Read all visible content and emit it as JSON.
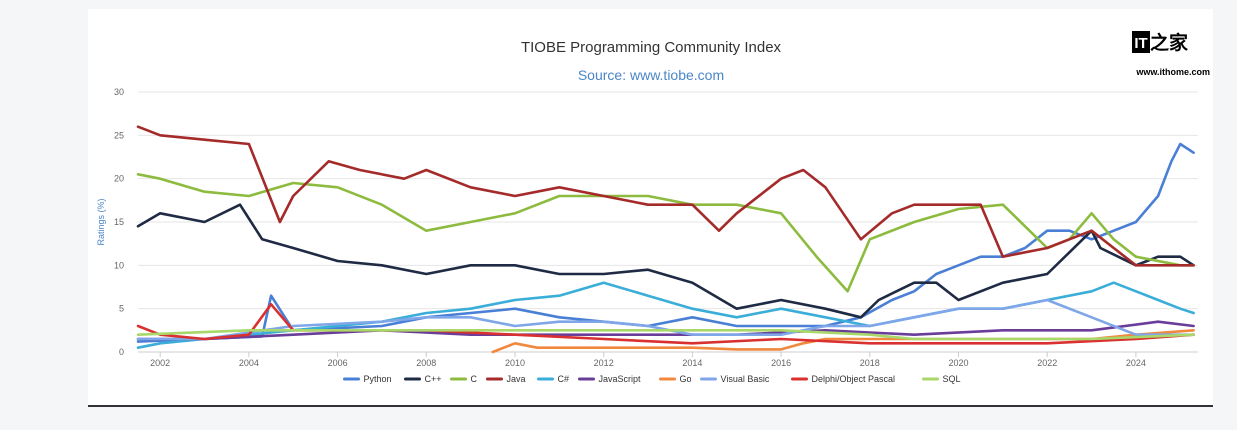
{
  "chart_data": {
    "type": "line",
    "title": "TIOBE Programming Community Index",
    "subtitle": "Source: www.tiobe.com",
    "ylabel": "Ratings (%)",
    "xlabel": "",
    "ylim": [
      0,
      30
    ],
    "xlim": [
      2001.5,
      2025.4
    ],
    "yticks": [
      "0",
      "5",
      "10",
      "15",
      "20",
      "25",
      "30"
    ],
    "xticks": [
      "2002",
      "2004",
      "2006",
      "2008",
      "2010",
      "2012",
      "2014",
      "2016",
      "2018",
      "2020",
      "2022",
      "2024"
    ],
    "grid": true,
    "legend_position": "bottom",
    "series": [
      {
        "name": "Python",
        "color": "#4a7fd6",
        "x": [
          2001.5,
          2003,
          2004.3,
          2004.5,
          2005,
          2007,
          2008,
          2009,
          2010,
          2011,
          2012,
          2013,
          2014,
          2015,
          2016,
          2017,
          2017.8,
          2018.5,
          2019,
          2019.5,
          2020,
          2020.5,
          2021,
          2021.5,
          2022,
          2022.5,
          2023,
          2023.5,
          2024,
          2024.5,
          2024.8,
          2025,
          2025.3
        ],
        "y": [
          1.2,
          1.5,
          1.8,
          6.5,
          2.5,
          3,
          4,
          4.5,
          5,
          4,
          3.5,
          3,
          4,
          3,
          3,
          3,
          4,
          6,
          7,
          9,
          10,
          11,
          11,
          12,
          14,
          14,
          13,
          14,
          15,
          18,
          22,
          24,
          23
        ]
      },
      {
        "name": "C++",
        "color": "#1f2a44",
        "x": [
          2001.5,
          2002,
          2003,
          2003.8,
          2004.3,
          2005,
          2006,
          2007,
          2008,
          2009,
          2010,
          2011,
          2012,
          2013,
          2014,
          2015,
          2016,
          2017,
          2017.8,
          2018.2,
          2019,
          2019.5,
          2020,
          2021,
          2022,
          2023,
          2023.2,
          2024,
          2024.5,
          2025,
          2025.3
        ],
        "y": [
          14.5,
          16,
          15,
          17,
          13,
          12,
          10.5,
          10,
          9,
          10,
          10,
          9,
          9,
          9.5,
          8,
          5,
          6,
          5,
          4,
          6,
          8,
          8,
          6,
          8,
          9,
          14,
          12,
          10,
          11,
          11,
          10
        ]
      },
      {
        "name": "C",
        "color": "#8dbb3f",
        "x": [
          2001.5,
          2002,
          2003,
          2004,
          2005,
          2006,
          2007,
          2008,
          2009,
          2010,
          2011,
          2012,
          2013,
          2014,
          2015,
          2016,
          2016.8,
          2017.5,
          2018,
          2019,
          2020,
          2021,
          2022,
          2022.5,
          2023,
          2023.5,
          2024,
          2025,
          2025.3
        ],
        "y": [
          20.5,
          20,
          18.5,
          18,
          19.5,
          19,
          17,
          14,
          15,
          16,
          18,
          18,
          18,
          17,
          17,
          16,
          11,
          7,
          13,
          15,
          16.5,
          17,
          12,
          13,
          16,
          13,
          11,
          10,
          10
        ]
      },
      {
        "name": "Java",
        "color": "#a52a2a",
        "x": [
          2001.5,
          2002,
          2003,
          2004,
          2004.7,
          2005,
          2005.8,
          2006.5,
          2007.5,
          2008,
          2009,
          2010,
          2011,
          2012,
          2013,
          2014,
          2014.6,
          2015,
          2016,
          2016.5,
          2017,
          2017.8,
          2018.5,
          2019,
          2020,
          2020.5,
          2021,
          2022,
          2022.5,
          2023,
          2023.5,
          2024,
          2025,
          2025.3
        ],
        "y": [
          26,
          25,
          24.5,
          24,
          15,
          18,
          22,
          21,
          20,
          21,
          19,
          18,
          19,
          18,
          17,
          17,
          14,
          16,
          20,
          21,
          19,
          13,
          16,
          17,
          17,
          17,
          11,
          12,
          13,
          14,
          12,
          10,
          10,
          10
        ]
      },
      {
        "name": "C#",
        "color": "#3aaed8",
        "x": [
          2001.5,
          2002,
          2003,
          2004,
          2005,
          2006,
          2007,
          2008,
          2009,
          2010,
          2011,
          2012,
          2013,
          2014,
          2015,
          2016,
          2017,
          2018,
          2019,
          2020,
          2021,
          2022,
          2023,
          2023.5,
          2024,
          2024.5,
          2025,
          2025.3
        ],
        "y": [
          0.5,
          1,
          1.5,
          2,
          2.5,
          3,
          3.5,
          4.5,
          5,
          6,
          6.5,
          8,
          6.5,
          5,
          4,
          5,
          4,
          3,
          4,
          5,
          5,
          6,
          7,
          8,
          7,
          6,
          5,
          4.5
        ]
      },
      {
        "name": "JavaScript",
        "color": "#6a3d9a",
        "x": [
          2001.5,
          2003,
          2005,
          2007,
          2009,
          2011,
          2013,
          2015,
          2017,
          2019,
          2021,
          2023,
          2024.5,
          2025.3
        ],
        "y": [
          1.5,
          1.5,
          2,
          2.5,
          2,
          2,
          2,
          2,
          2.5,
          2,
          2.5,
          2.5,
          3.5,
          3
        ]
      },
      {
        "name": "Go",
        "color": "#f0883e",
        "x": [
          2009.5,
          2010,
          2010.5,
          2011,
          2012,
          2013,
          2014,
          2015,
          2016,
          2016.5,
          2017,
          2018,
          2019,
          2020,
          2021,
          2022,
          2023,
          2024,
          2025.3
        ],
        "y": [
          0,
          1,
          0.5,
          0.5,
          0.5,
          0.5,
          0.5,
          0.3,
          0.3,
          1,
          1.5,
          1.5,
          1.5,
          1.5,
          1.5,
          1.5,
          1.5,
          2,
          2.5
        ]
      },
      {
        "name": "Visual Basic",
        "color": "#7fa6e8",
        "x": [
          2001.5,
          2003,
          2005,
          2007,
          2008,
          2009,
          2010,
          2011,
          2012,
          2013,
          2014,
          2015,
          2016,
          2017,
          2018,
          2019,
          2020,
          2021,
          2022,
          2023,
          2024,
          2025.3
        ],
        "y": [
          1.5,
          1.5,
          3,
          3.5,
          4,
          4,
          3,
          3.5,
          3.5,
          3,
          2,
          2,
          2,
          3,
          3,
          4,
          5,
          5,
          6,
          4,
          2,
          2
        ]
      },
      {
        "name": "Delphi/Object Pascal",
        "color": "#d93030",
        "x": [
          2001.5,
          2002,
          2003,
          2004,
          2004.5,
          2005,
          2006,
          2008,
          2010,
          2012,
          2014,
          2016,
          2018,
          2020,
          2022,
          2024,
          2025.3
        ],
        "y": [
          3,
          2,
          1.5,
          2,
          5.5,
          2.5,
          2.5,
          2.5,
          2,
          1.5,
          1,
          1.5,
          1,
          1,
          1,
          1.5,
          2
        ]
      },
      {
        "name": "SQL",
        "color": "#a8d86a",
        "x": [
          2001.5,
          2004,
          2006,
          2008,
          2010,
          2012,
          2014,
          2016,
          2018,
          2019,
          2021,
          2023,
          2025.3
        ],
        "y": [
          2,
          2.5,
          2.5,
          2.5,
          2.5,
          2.5,
          2.5,
          2.5,
          2,
          1.5,
          1.5,
          1.5,
          2
        ]
      }
    ]
  },
  "watermark": {
    "logo_mark": "IT之家",
    "site": "www.ithome.com"
  }
}
